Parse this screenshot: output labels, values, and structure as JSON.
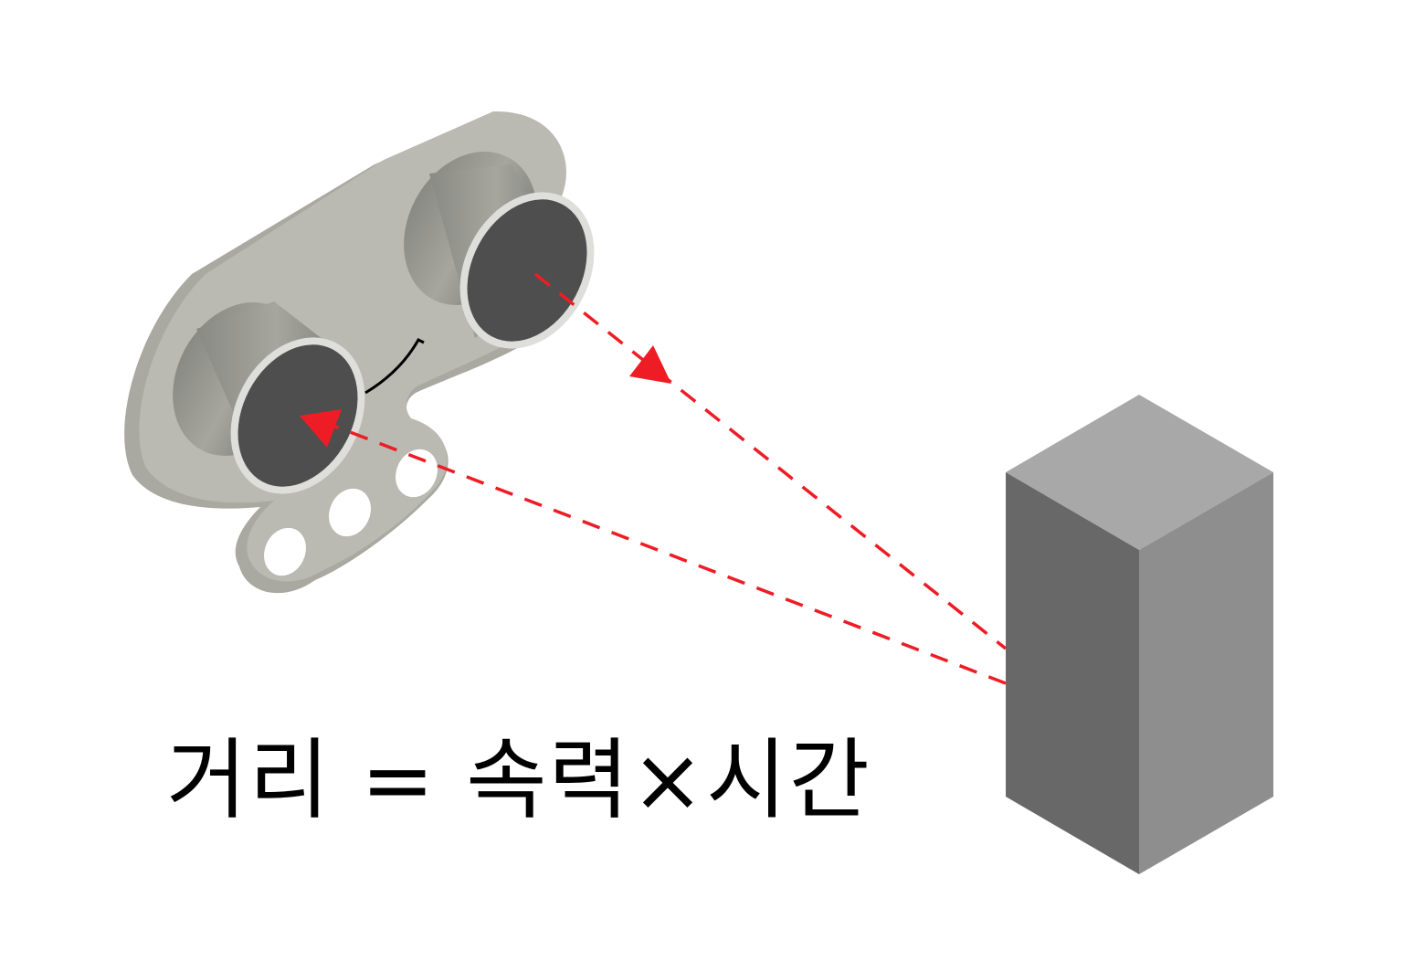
{
  "formula": "거리 = 속력×시간",
  "colors": {
    "background": "#ffffff",
    "sensor_board": "#babab2",
    "sensor_board_edge": "#a9a9a1",
    "transducer_face": "#4e4e4e",
    "transducer_rim": "#dededa",
    "signal_path": "#ee1c25",
    "box_top": "#a8a8a8",
    "box_left": "#686868",
    "box_right": "#8e8e8e",
    "text": "#000000"
  },
  "icons": {
    "sensor": "ultrasonic-sensor-icon",
    "obstacle": "obstacle-box-icon",
    "emit_arrow": "arrowhead-icon",
    "echo_arrow": "arrowhead-icon"
  }
}
